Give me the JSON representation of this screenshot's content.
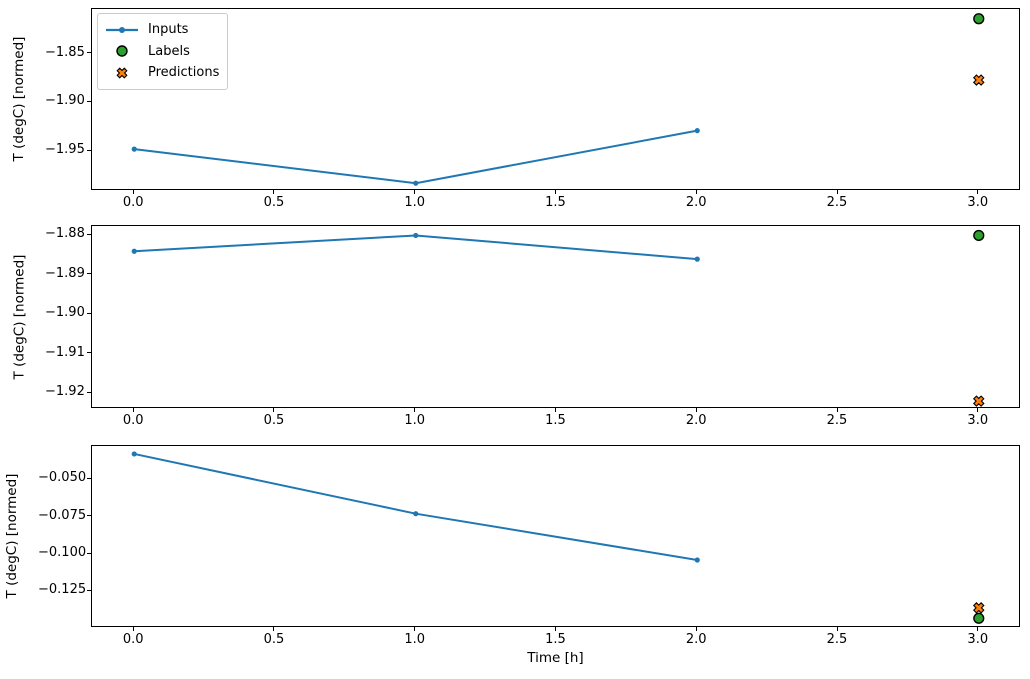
{
  "figure": {
    "background": "#ffffff",
    "text_color": "#000000"
  },
  "colors": {
    "inputs": "#1f77b4",
    "labels": "#2ca02c",
    "predictions": "#ff7f0e",
    "marker_edge": "#000000",
    "spine": "#000000",
    "legend_border": "#cccccc"
  },
  "legend": {
    "items": [
      {
        "label": "Inputs",
        "marker": "line-with-dot",
        "color": "#1f77b4"
      },
      {
        "label": "Labels",
        "marker": "filled-circle",
        "color": "#2ca02c"
      },
      {
        "label": "Predictions",
        "marker": "filled-x",
        "color": "#ff7f0e"
      }
    ],
    "position": "upper-left-of-top-subplot"
  },
  "chart_data": {
    "type": "line",
    "title": "",
    "xlabel": "Time [h]",
    "ylabel": "T (degC) [normed]",
    "xlim": [
      -0.15,
      3.15
    ],
    "xticks": [
      0.0,
      0.5,
      1.0,
      1.5,
      2.0,
      2.5,
      3.0
    ],
    "xtick_labels": [
      "0.0",
      "0.5",
      "1.0",
      "1.5",
      "2.0",
      "2.5",
      "3.0"
    ],
    "grid": false,
    "legend_position": "upper left",
    "subplots": [
      {
        "ylim": [
          -1.991,
          -1.804
        ],
        "yticks": [
          -1.85,
          -1.9,
          -1.95
        ],
        "ytick_labels": [
          "−1.85",
          "−1.90",
          "−1.95"
        ],
        "series": [
          {
            "name": "Inputs",
            "type": "line+dots",
            "x": [
              0,
              1,
              2
            ],
            "y": [
              -1.948,
              -1.983,
              -1.929
            ]
          },
          {
            "name": "Labels",
            "type": "scatter-circle",
            "x": [
              3
            ],
            "y": [
              -1.814
            ]
          },
          {
            "name": "Predictions",
            "type": "scatter-x",
            "x": [
              3
            ],
            "y": [
              -1.877
            ]
          }
        ]
      },
      {
        "ylim": [
          -1.924,
          -1.8776
        ],
        "yticks": [
          -1.88,
          -1.89,
          -1.9,
          -1.91,
          -1.92
        ],
        "ytick_labels": [
          "−1.88",
          "−1.89",
          "−1.90",
          "−1.91",
          "−1.92"
        ],
        "series": [
          {
            "name": "Inputs",
            "type": "line+dots",
            "x": [
              0,
              1,
              2
            ],
            "y": [
              -1.884,
              -1.88,
              -1.886
            ]
          },
          {
            "name": "Labels",
            "type": "scatter-circle",
            "x": [
              3
            ],
            "y": [
              -1.88
            ]
          },
          {
            "name": "Predictions",
            "type": "scatter-x",
            "x": [
              3
            ],
            "y": [
              -1.922
            ]
          }
        ]
      },
      {
        "ylim": [
          -0.1495,
          -0.0277
        ],
        "yticks": [
          -0.05,
          -0.075,
          -0.1,
          -0.125
        ],
        "ytick_labels": [
          "−0.050",
          "−0.075",
          "−0.100",
          "−0.125"
        ],
        "series": [
          {
            "name": "Inputs",
            "type": "line+dots",
            "x": [
              0,
              1,
              2
            ],
            "y": [
              -0.033,
              -0.073,
              -0.104
            ]
          },
          {
            "name": "Labels",
            "type": "scatter-circle",
            "x": [
              3
            ],
            "y": [
              -0.143
            ]
          },
          {
            "name": "Predictions",
            "type": "scatter-x",
            "x": [
              3
            ],
            "y": [
              -0.136
            ]
          }
        ]
      }
    ]
  }
}
